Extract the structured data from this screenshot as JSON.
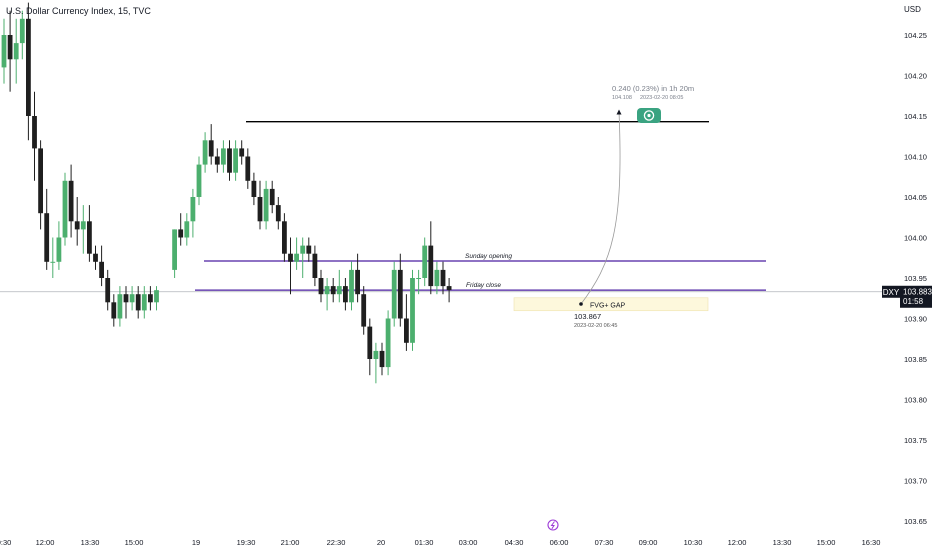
{
  "header": {
    "title": "U.S. Dollar Currency Index, 15, TVC"
  },
  "currency_label": "USD",
  "colors": {
    "up": "#4caf6e",
    "down": "#1f1f1f",
    "level": "#4a1fa0",
    "resistance": "#000000",
    "fvg_fill": "#fdf8dc",
    "target": "#3aa381",
    "crosshair": "#b0b3bb",
    "price_tag": "#131722"
  },
  "price_tag": {
    "symbol": "DXY",
    "price": "103.883",
    "countdown": "01:58"
  },
  "chart_data": {
    "type": "candlestick",
    "title": "U.S. Dollar Currency Index, 15, TVC",
    "y_axis": {
      "ticks": [
        "104.25",
        "104.20",
        "104.15",
        "104.10",
        "104.05",
        "104.00",
        "103.95",
        "103.90",
        "103.85",
        "103.80",
        "103.75",
        "103.70",
        "103.65",
        "103.60"
      ]
    },
    "x_axis": {
      "ticks": [
        "9:30",
        "12:00",
        "13:30",
        "15:00",
        "19",
        "19:30",
        "21:00",
        "22:30",
        "20",
        "01:30",
        "03:00",
        "04:30",
        "06:00",
        "07:30",
        "09:00",
        "10:30",
        "12:00",
        "13:30",
        "15:00",
        "16:30"
      ]
    },
    "candles": [
      [
        104.16,
        104.22,
        104.14,
        104.2
      ],
      [
        104.2,
        104.23,
        104.13,
        104.17
      ],
      [
        104.17,
        104.22,
        104.14,
        104.19
      ],
      [
        104.19,
        104.23,
        104.17,
        104.22
      ],
      [
        104.22,
        104.24,
        104.07,
        104.1
      ],
      [
        104.1,
        104.13,
        104.02,
        104.06
      ],
      [
        104.06,
        104.07,
        103.96,
        103.98
      ],
      [
        103.98,
        104.01,
        103.91,
        103.92
      ],
      [
        103.92,
        103.95,
        103.9,
        103.92
      ],
      [
        103.92,
        103.97,
        103.91,
        103.95
      ],
      [
        103.95,
        104.03,
        103.94,
        104.02
      ],
      [
        104.02,
        104.04,
        103.95,
        103.97
      ],
      [
        103.97,
        104.0,
        103.94,
        103.96
      ],
      [
        103.96,
        103.99,
        103.93,
        103.97
      ],
      [
        103.97,
        103.99,
        103.92,
        103.93
      ],
      [
        103.93,
        103.94,
        103.91,
        103.92
      ],
      [
        103.92,
        103.94,
        103.89,
        103.9
      ],
      [
        103.9,
        103.91,
        103.86,
        103.87
      ],
      [
        103.87,
        103.88,
        103.84,
        103.85
      ],
      [
        103.85,
        103.89,
        103.84,
        103.88
      ],
      [
        103.88,
        103.89,
        103.85,
        103.87
      ],
      [
        103.87,
        103.89,
        103.86,
        103.88
      ],
      [
        103.88,
        103.89,
        103.85,
        103.86
      ],
      [
        103.86,
        103.89,
        103.85,
        103.88
      ],
      [
        103.88,
        103.89,
        103.86,
        103.87
      ],
      [
        103.87,
        103.89,
        103.86,
        103.885
      ],
      [
        103.91,
        103.96,
        103.9,
        103.96
      ],
      [
        103.96,
        103.98,
        103.94,
        103.95
      ],
      [
        103.95,
        103.98,
        103.94,
        103.97
      ],
      [
        103.97,
        104.01,
        103.95,
        104.0
      ],
      [
        104.0,
        104.05,
        103.99,
        104.04
      ],
      [
        104.04,
        104.08,
        104.03,
        104.07
      ],
      [
        104.07,
        104.09,
        104.04,
        104.05
      ],
      [
        104.05,
        104.06,
        104.03,
        104.04
      ],
      [
        104.04,
        104.07,
        104.03,
        104.06
      ],
      [
        104.06,
        104.07,
        104.02,
        104.03
      ],
      [
        104.03,
        104.07,
        104.02,
        104.06
      ],
      [
        104.06,
        104.07,
        104.04,
        104.05
      ],
      [
        104.05,
        104.06,
        104.01,
        104.02
      ],
      [
        104.02,
        104.03,
        103.99,
        104.0
      ],
      [
        104.0,
        104.02,
        103.96,
        103.97
      ],
      [
        103.97,
        104.02,
        103.96,
        104.01
      ],
      [
        104.01,
        104.02,
        103.98,
        103.99
      ],
      [
        103.99,
        104.0,
        103.96,
        103.97
      ],
      [
        103.97,
        103.98,
        103.92,
        103.93
      ],
      [
        103.93,
        103.95,
        103.88,
        103.92
      ],
      [
        103.92,
        103.95,
        103.91,
        103.93
      ],
      [
        103.93,
        103.95,
        103.9,
        103.94
      ],
      [
        103.94,
        103.95,
        103.92,
        103.93
      ],
      [
        103.93,
        103.94,
        103.89,
        103.9
      ],
      [
        103.9,
        103.91,
        103.87,
        103.88
      ],
      [
        103.88,
        103.9,
        103.86,
        103.89
      ],
      [
        103.89,
        103.9,
        103.87,
        103.88
      ],
      [
        103.88,
        103.91,
        103.87,
        103.89
      ],
      [
        103.89,
        103.9,
        103.86,
        103.87
      ],
      [
        103.87,
        103.92,
        103.86,
        103.91
      ],
      [
        103.91,
        103.93,
        103.87,
        103.88
      ],
      [
        103.88,
        103.89,
        103.83,
        103.84
      ],
      [
        103.84,
        103.85,
        103.78,
        103.8
      ],
      [
        103.8,
        103.82,
        103.77,
        103.81
      ],
      [
        103.81,
        103.82,
        103.78,
        103.79
      ],
      [
        103.79,
        103.86,
        103.78,
        103.85
      ],
      [
        103.85,
        103.92,
        103.84,
        103.91
      ],
      [
        103.91,
        103.93,
        103.84,
        103.85
      ],
      [
        103.85,
        103.88,
        103.81,
        103.82
      ],
      [
        103.82,
        103.91,
        103.81,
        103.9
      ],
      [
        103.9,
        103.91,
        103.88,
        103.9
      ],
      [
        103.9,
        103.95,
        103.89,
        103.94
      ],
      [
        103.94,
        103.97,
        103.88,
        103.89
      ],
      [
        103.89,
        103.92,
        103.88,
        103.91
      ],
      [
        103.91,
        103.92,
        103.88,
        103.89
      ],
      [
        103.89,
        103.9,
        103.87,
        103.885
      ]
    ],
    "levels": [
      {
        "name": "Sunday opening",
        "price": 103.921
      },
      {
        "name": "Friday close",
        "price": 103.885
      }
    ],
    "resistance_price": 104.093,
    "fvg_zone": {
      "label": "FVG+ GAP",
      "top": 103.883,
      "bottom": 103.867
    },
    "measure": {
      "start_price": "103.867",
      "start_time": "2023-02-20 06:45",
      "end_price": "104.108",
      "end_time": "2023-02-20 08:05",
      "change": "0.240 (0.23%) in 1h 20m"
    },
    "grid": false,
    "legend": "none"
  }
}
